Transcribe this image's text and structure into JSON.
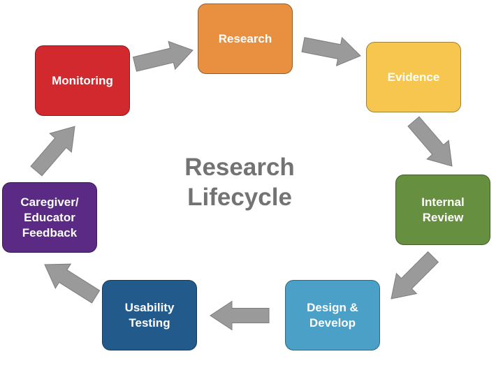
{
  "title": "Research\nLifecycle",
  "colors": {
    "title": "#737373",
    "arrow_fill": "#9a9a9a",
    "arrow_stroke": "#7d7d7d"
  },
  "stages": [
    {
      "label": "Research",
      "color": "#E8903F"
    },
    {
      "label": "Evidence",
      "color": "#F6C64E"
    },
    {
      "label": "Internal\nReview",
      "color": "#66903F"
    },
    {
      "label": "Design &\nDevelop",
      "color": "#4BA0C7"
    },
    {
      "label": "Usability\nTesting",
      "color": "#235A8C"
    },
    {
      "label": "Caregiver/\nEducator\nFeedback",
      "color": "#5A2A84"
    },
    {
      "label": "Monitoring",
      "color": "#D2292E"
    }
  ],
  "arrow_icon": "block-arrow-icon"
}
